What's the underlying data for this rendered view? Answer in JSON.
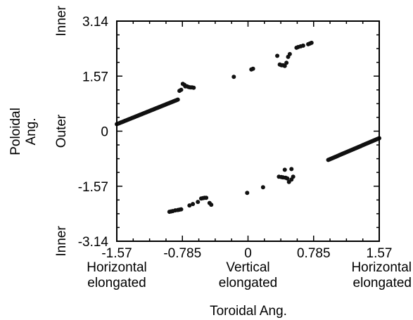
{
  "chart_data": {
    "type": "scatter",
    "xlabel": "Toroidal Ang.",
    "ylabel": [
      "Poloidal",
      "Ang."
    ],
    "xlim": [
      -1.57,
      1.57
    ],
    "ylim": [
      -3.14,
      3.14
    ],
    "x_ticks": [
      {
        "value": -1.57,
        "label": "-1.57"
      },
      {
        "value": -0.785,
        "label": "-0.785"
      },
      {
        "value": 0,
        "label": "0"
      },
      {
        "value": 0.785,
        "label": "0.785"
      },
      {
        "value": 1.57,
        "label": "1.57"
      }
    ],
    "y_ticks": [
      {
        "value": 3.14,
        "label": "3.14"
      },
      {
        "value": 1.57,
        "label": "1.57"
      },
      {
        "value": 0,
        "label": "0"
      },
      {
        "value": -1.57,
        "label": "-1.57"
      },
      {
        "value": -3.14,
        "label": "-3.14"
      }
    ],
    "x_annotations": [
      {
        "value": -1.57,
        "lines": [
          "Horizontal",
          "elongated"
        ]
      },
      {
        "value": 0,
        "lines": [
          "Vertical",
          "elongated"
        ]
      },
      {
        "value": 1.57,
        "lines": [
          "Horizontal",
          "elongated"
        ]
      }
    ],
    "y_annotations": [
      {
        "value": 3.14,
        "text": "Inner"
      },
      {
        "value": 0,
        "text": "Outer"
      },
      {
        "value": -3.14,
        "text": "Inner"
      }
    ],
    "grid": false,
    "segments": [
      {
        "x1": -1.57,
        "y1": 0.2,
        "x2": -0.84,
        "y2": 0.9,
        "n": 60
      },
      {
        "x1": 0.96,
        "y1": -0.82,
        "x2": 1.57,
        "y2": -0.2,
        "n": 50
      }
    ],
    "points": [
      [
        -0.82,
        1.15
      ],
      [
        -0.8,
        1.18
      ],
      [
        -0.78,
        1.35
      ],
      [
        -0.76,
        1.32
      ],
      [
        -0.75,
        1.28
      ],
      [
        -0.73,
        1.28
      ],
      [
        -0.71,
        1.26
      ],
      [
        -0.69,
        1.25
      ],
      [
        -0.67,
        1.25
      ],
      [
        -0.65,
        1.24
      ],
      [
        -0.17,
        1.55
      ],
      [
        0.04,
        1.76
      ],
      [
        0.06,
        1.78
      ],
      [
        0.35,
        2.15
      ],
      [
        0.38,
        1.9
      ],
      [
        0.4,
        1.88
      ],
      [
        0.42,
        1.88
      ],
      [
        0.44,
        1.86
      ],
      [
        0.46,
        1.95
      ],
      [
        0.48,
        2.12
      ],
      [
        0.5,
        2.2
      ],
      [
        0.58,
        2.38
      ],
      [
        0.6,
        2.4
      ],
      [
        0.63,
        2.42
      ],
      [
        0.66,
        2.44
      ],
      [
        0.72,
        2.48
      ],
      [
        0.74,
        2.5
      ],
      [
        0.76,
        2.52
      ],
      [
        -0.94,
        -2.3
      ],
      [
        -0.92,
        -2.29
      ],
      [
        -0.9,
        -2.28
      ],
      [
        -0.87,
        -2.26
      ],
      [
        -0.84,
        -2.25
      ],
      [
        -0.82,
        -2.24
      ],
      [
        -0.8,
        -2.23
      ],
      [
        -0.7,
        -2.12
      ],
      [
        -0.66,
        -2.08
      ],
      [
        -0.6,
        -2.02
      ],
      [
        -0.56,
        -1.92
      ],
      [
        -0.54,
        -1.91
      ],
      [
        -0.52,
        -1.9
      ],
      [
        -0.5,
        -1.9
      ],
      [
        -0.46,
        -2.05
      ],
      [
        -0.44,
        -2.1
      ],
      [
        -0.01,
        -1.76
      ],
      [
        0.18,
        -1.6
      ],
      [
        0.37,
        -1.3
      ],
      [
        0.4,
        -1.31
      ],
      [
        0.42,
        -1.32
      ],
      [
        0.45,
        -1.33
      ],
      [
        0.47,
        -1.35
      ],
      [
        0.49,
        -1.45
      ],
      [
        0.52,
        -1.38
      ],
      [
        0.54,
        -1.3
      ],
      [
        0.44,
        -1.1
      ],
      [
        0.52,
        -1.08
      ]
    ]
  }
}
